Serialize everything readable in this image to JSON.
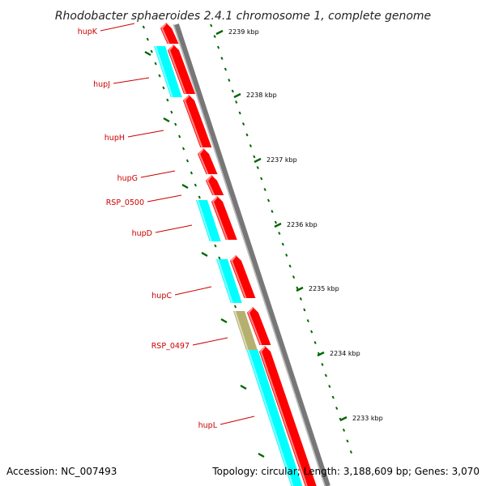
{
  "title": "Rhodobacter sphaeroides 2.4.1 chromosome 1, complete genome",
  "footer": {
    "accession": "Accession: NC_007493",
    "summary": "Topology: circular; Length: 3,188,609 bp; Genes: 3,070"
  },
  "colors": {
    "backbone": "#777777",
    "forward_gene": "#ff0000",
    "reverse_gene": "#00ffff",
    "other_gene": "#b5b070",
    "label": "#cc0000",
    "tick": "#006600"
  },
  "kbp_labels": [
    "2239 kbp",
    "2238 kbp",
    "2237 kbp",
    "2236 kbp",
    "2235 kbp",
    "2234 kbp",
    "2233 kbp"
  ],
  "genes": [
    {
      "label": "hupK",
      "strand": "forward"
    },
    {
      "label": "hupJ",
      "strand": "forward"
    },
    {
      "label": "hupH",
      "strand": "forward"
    },
    {
      "label": "hupG",
      "strand": "forward"
    },
    {
      "label": "RSP_0500",
      "strand": "forward"
    },
    {
      "label": "hupD",
      "strand": "forward"
    },
    {
      "label": "hupC",
      "strand": "forward"
    },
    {
      "label": "RSP_0497",
      "strand": "forward"
    },
    {
      "label": "hupL",
      "strand": "forward"
    }
  ],
  "reverse_features": 4,
  "other_features": 1
}
